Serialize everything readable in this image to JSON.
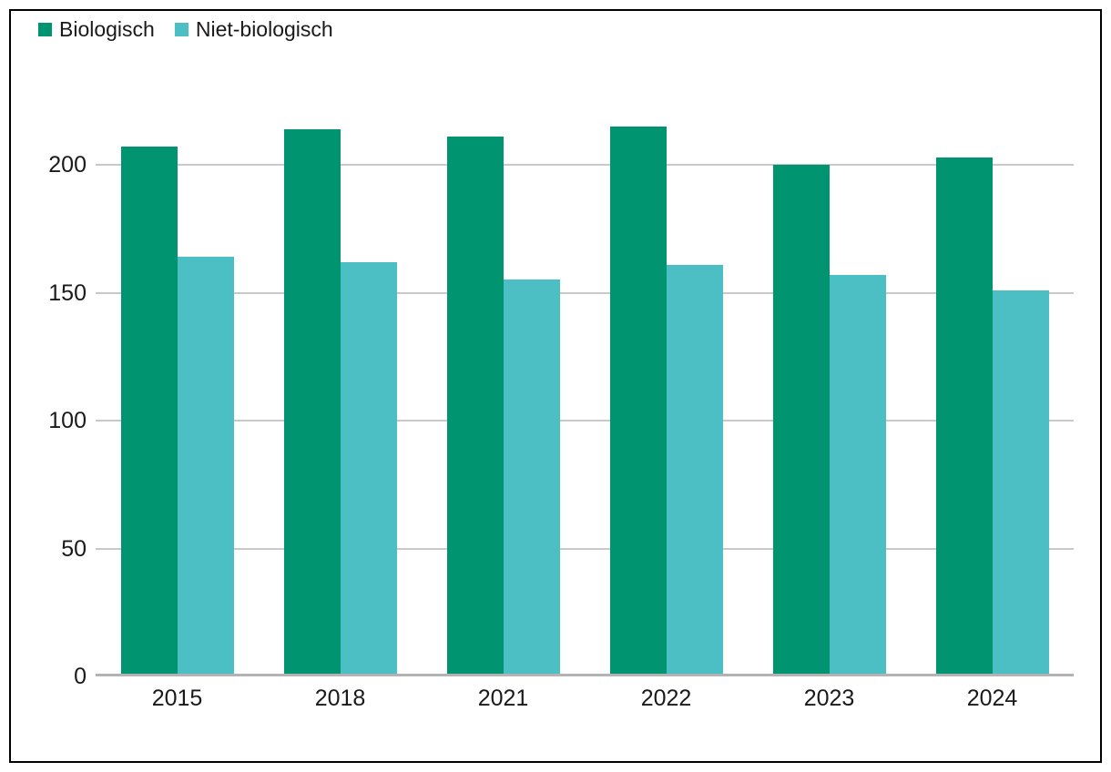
{
  "legend": {
    "items": [
      {
        "label": "Biologisch",
        "color": "#009570"
      },
      {
        "label": "Niet-biologisch",
        "color": "#4BBFC3"
      }
    ]
  },
  "chart_data": {
    "type": "bar",
    "title": "",
    "xlabel": "",
    "ylabel": "",
    "categories": [
      "2015",
      "2018",
      "2021",
      "2022",
      "2023",
      "2024"
    ],
    "series": [
      {
        "name": "Biologisch",
        "color": "#009570",
        "values": [
          206,
          213,
          210,
          214,
          199,
          202
        ]
      },
      {
        "name": "Niet-biologisch",
        "color": "#4BBFC3",
        "values": [
          163,
          161,
          154,
          160,
          156,
          150
        ]
      }
    ],
    "ylim": [
      0,
      225
    ],
    "yticks": [
      0,
      50,
      100,
      150,
      200
    ],
    "grid": true,
    "legend_position": "top-left",
    "colors": {
      "grid_line": "#c9c9c9",
      "zero_line": "#b3b3b3",
      "text": "#1a1a1a",
      "frame": "#000000"
    }
  }
}
